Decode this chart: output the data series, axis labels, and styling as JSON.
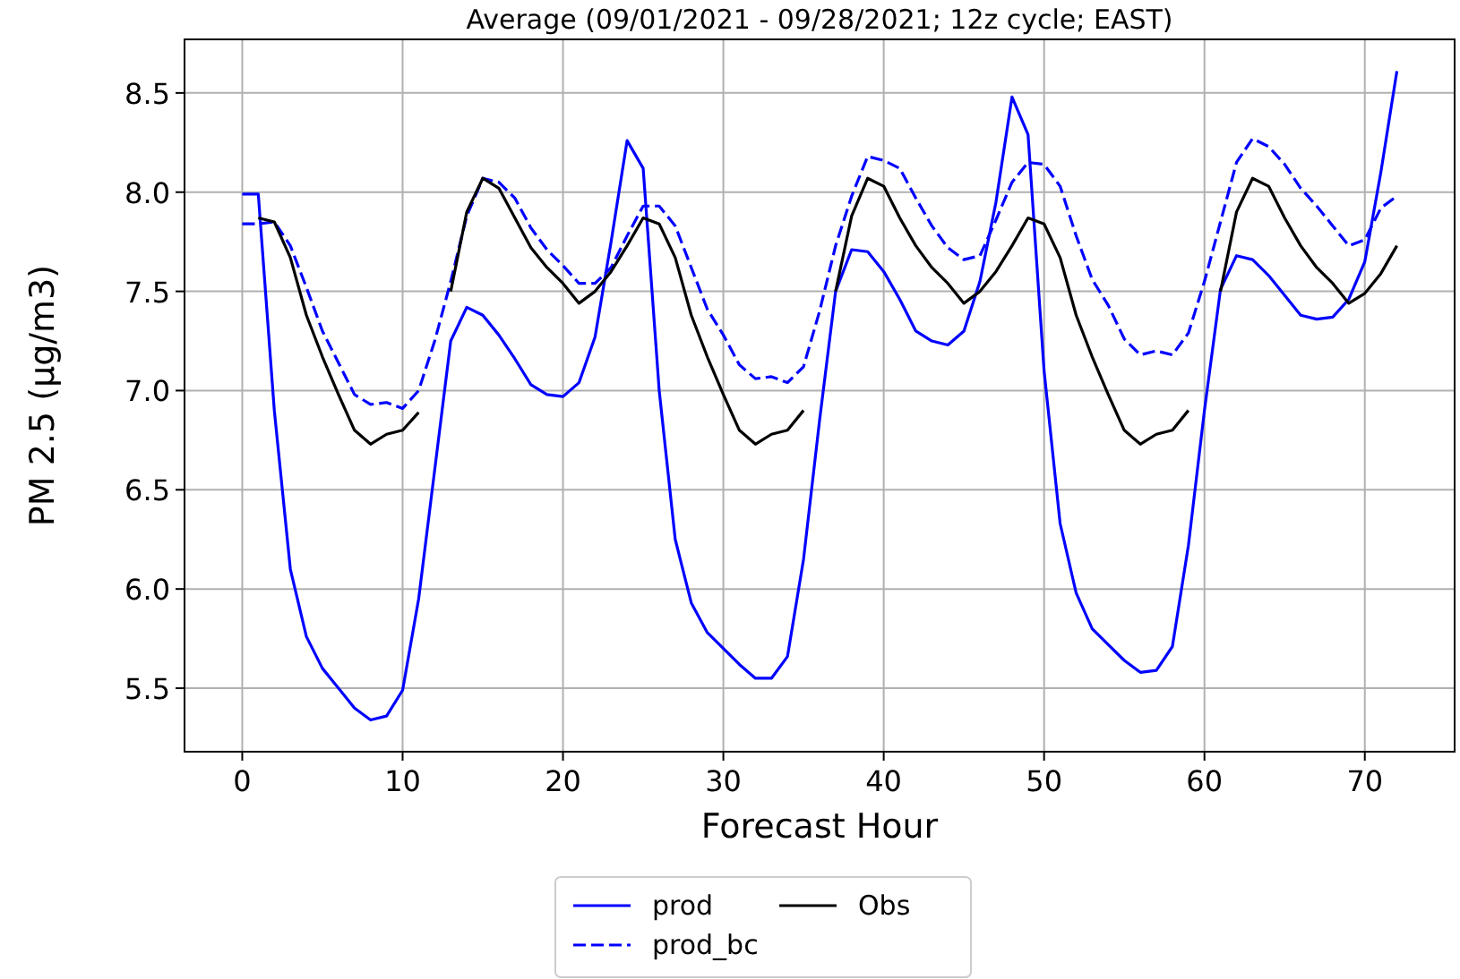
{
  "chart_data": {
    "type": "line",
    "title": "Average (09/01/2021 - 09/28/2021; 12z cycle; EAST)",
    "xlabel": "Forecast Hour",
    "ylabel": "PM 2.5 (µg/m3)",
    "x": [
      0,
      1,
      2,
      3,
      4,
      5,
      6,
      7,
      8,
      9,
      10,
      11,
      12,
      13,
      14,
      15,
      16,
      17,
      18,
      19,
      20,
      21,
      22,
      23,
      24,
      25,
      26,
      27,
      28,
      29,
      30,
      31,
      32,
      33,
      34,
      35,
      36,
      37,
      38,
      39,
      40,
      41,
      42,
      43,
      44,
      45,
      46,
      47,
      48,
      49,
      50,
      51,
      52,
      53,
      54,
      55,
      56,
      57,
      58,
      59,
      60,
      61,
      62,
      63,
      64,
      65,
      66,
      67,
      68,
      69,
      70,
      71,
      72
    ],
    "xlim": [
      -3.6,
      75.6
    ],
    "xticks": [
      0,
      10,
      20,
      30,
      40,
      50,
      60,
      70
    ],
    "ylim": [
      5.18,
      8.77
    ],
    "yticks": [
      {
        "value": 5.5,
        "label": "5.5"
      },
      {
        "value": 6,
        "label": "6.0"
      },
      {
        "value": 6.5,
        "label": "6.5"
      },
      {
        "value": 7,
        "label": "7.0"
      },
      {
        "value": 7.5,
        "label": "7.5"
      },
      {
        "value": 8,
        "label": "8.0"
      },
      {
        "value": 8.5,
        "label": "8.5"
      }
    ],
    "grid": true,
    "legend": "bottom",
    "series": [
      {
        "name": "prod",
        "color": "#0000ff",
        "line_style": "solid",
        "values": [
          7.99,
          7.99,
          6.9,
          6.1,
          5.76,
          5.6,
          5.5,
          5.4,
          5.34,
          5.36,
          5.49,
          5.95,
          6.6,
          7.25,
          7.42,
          7.38,
          7.28,
          7.16,
          7.03,
          6.98,
          6.97,
          7.04,
          7.27,
          7.75,
          8.26,
          8.12,
          7.0,
          6.25,
          5.93,
          5.78,
          5.7,
          5.62,
          5.55,
          5.55,
          5.66,
          6.15,
          6.85,
          7.5,
          7.71,
          7.7,
          7.6,
          7.46,
          7.3,
          7.25,
          7.23,
          7.3,
          7.55,
          7.95,
          8.48,
          8.29,
          7.1,
          6.33,
          5.98,
          5.8,
          5.72,
          5.64,
          5.58,
          5.59,
          5.71,
          6.22,
          6.9,
          7.51,
          7.68,
          7.66,
          7.58,
          7.48,
          7.38,
          7.36,
          7.37,
          7.46,
          7.65,
          8.1,
          8.61
        ]
      },
      {
        "name": "prod_bc",
        "color": "#0000ff",
        "line_style": "dashed",
        "values": [
          7.84,
          7.84,
          7.85,
          7.73,
          7.52,
          7.3,
          7.14,
          6.98,
          6.93,
          6.94,
          6.91,
          7.0,
          7.25,
          7.55,
          7.88,
          8.07,
          8.05,
          7.97,
          7.82,
          7.71,
          7.63,
          7.54,
          7.54,
          7.62,
          7.78,
          7.93,
          7.93,
          7.83,
          7.62,
          7.41,
          7.28,
          7.13,
          7.06,
          7.07,
          7.04,
          7.12,
          7.4,
          7.73,
          7.98,
          8.18,
          8.16,
          8.12,
          7.97,
          7.83,
          7.72,
          7.66,
          7.68,
          7.86,
          8.05,
          8.15,
          8.14,
          8.03,
          7.78,
          7.56,
          7.43,
          7.26,
          7.18,
          7.2,
          7.18,
          7.29,
          7.55,
          7.85,
          8.15,
          8.27,
          8.23,
          8.14,
          8.02,
          7.93,
          7.83,
          7.73,
          7.76,
          7.92,
          7.98
        ]
      },
      {
        "name": "Obs",
        "color": "#000000",
        "line_style": "solid",
        "values": [
          null,
          7.87,
          7.85,
          7.67,
          7.38,
          7.17,
          6.98,
          6.8,
          6.73,
          6.78,
          6.8,
          6.89,
          null,
          7.5,
          7.9,
          8.07,
          8.02,
          7.87,
          7.72,
          7.62,
          7.54,
          7.44,
          7.5,
          7.6,
          7.73,
          7.87,
          7.84,
          7.67,
          7.38,
          7.17,
          6.98,
          6.8,
          6.73,
          6.78,
          6.8,
          6.9,
          null,
          7.5,
          7.88,
          8.07,
          8.03,
          7.87,
          7.73,
          7.62,
          7.54,
          7.44,
          7.5,
          7.6,
          7.73,
          7.87,
          7.84,
          7.67,
          7.38,
          7.17,
          6.98,
          6.8,
          6.73,
          6.78,
          6.8,
          6.9,
          null,
          7.5,
          7.9,
          8.07,
          8.03,
          7.87,
          7.73,
          7.62,
          7.54,
          7.44,
          7.49,
          7.59,
          7.73
        ]
      }
    ]
  }
}
